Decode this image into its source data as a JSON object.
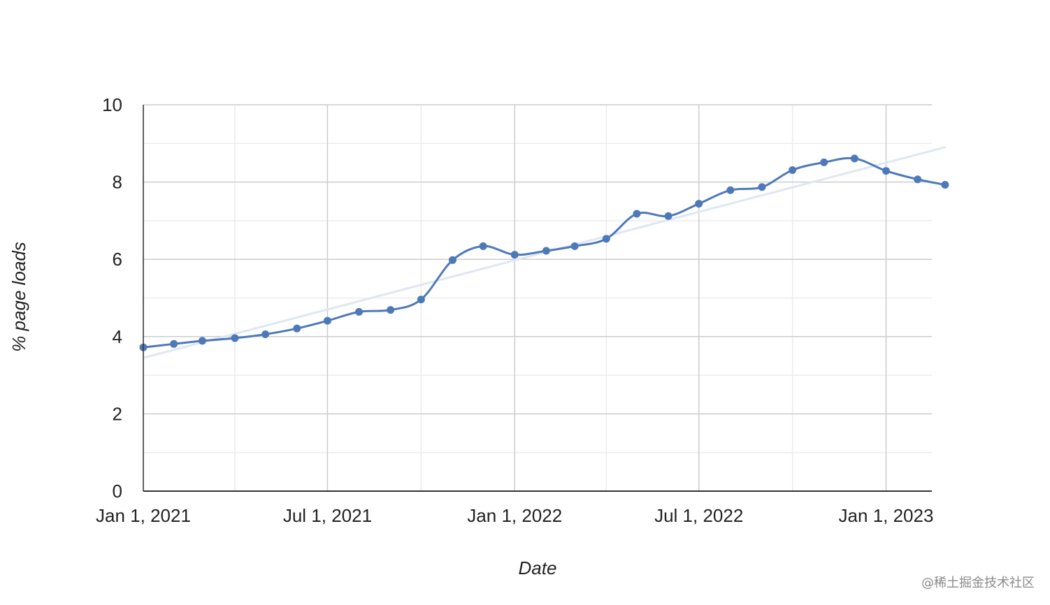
{
  "chart_data": {
    "type": "line",
    "title": "",
    "xlabel": "Date",
    "ylabel": "% page loads",
    "x_axis_type": "date",
    "xlim": [
      "2021-01-01",
      "2023-02-15"
    ],
    "ylim": [
      0,
      10
    ],
    "x_ticks": [
      {
        "date": "2021-01-01",
        "label": "Jan 1, 2021"
      },
      {
        "date": "2021-07-01",
        "label": "Jul 1, 2021"
      },
      {
        "date": "2022-01-01",
        "label": "Jan 1, 2022"
      },
      {
        "date": "2022-07-01",
        "label": "Jul 1, 2022"
      },
      {
        "date": "2023-01-01",
        "label": "Jan 1, 2023"
      }
    ],
    "x_minor_ticks": [
      "2021-04-01",
      "2021-10-01",
      "2022-04-01",
      "2022-10-01"
    ],
    "y_ticks": [
      {
        "value": 0,
        "label": "0"
      },
      {
        "value": 2,
        "label": "2"
      },
      {
        "value": 4,
        "label": "4"
      },
      {
        "value": 6,
        "label": "6"
      },
      {
        "value": 8,
        "label": "8"
      },
      {
        "value": 10,
        "label": "10"
      }
    ],
    "y_minor_ticks": [
      1,
      3,
      5,
      7,
      9
    ],
    "grid": true,
    "legend": "none",
    "series": [
      {
        "color": "#4e79b9",
        "smooth": true,
        "markers": true,
        "points": [
          {
            "x": "2021-01-01",
            "y": 3.72
          },
          {
            "x": "2021-01-31",
            "y": 3.81
          },
          {
            "x": "2021-02-28",
            "y": 3.89
          },
          {
            "x": "2021-04-01",
            "y": 3.96
          },
          {
            "x": "2021-05-01",
            "y": 4.06
          },
          {
            "x": "2021-06-01",
            "y": 4.21
          },
          {
            "x": "2021-07-01",
            "y": 4.41
          },
          {
            "x": "2021-08-01",
            "y": 4.64
          },
          {
            "x": "2021-09-01",
            "y": 4.69
          },
          {
            "x": "2021-10-01",
            "y": 4.96
          },
          {
            "x": "2021-11-01",
            "y": 5.98
          },
          {
            "x": "2021-12-01",
            "y": 6.34
          },
          {
            "x": "2022-01-01",
            "y": 6.12
          },
          {
            "x": "2022-02-01",
            "y": 6.22
          },
          {
            "x": "2022-03-01",
            "y": 6.34
          },
          {
            "x": "2022-04-01",
            "y": 6.53
          },
          {
            "x": "2022-05-01",
            "y": 7.18
          },
          {
            "x": "2022-06-01",
            "y": 7.12
          },
          {
            "x": "2022-07-01",
            "y": 7.44
          },
          {
            "x": "2022-08-01",
            "y": 7.79
          },
          {
            "x": "2022-09-01",
            "y": 7.87
          },
          {
            "x": "2022-10-01",
            "y": 8.31
          },
          {
            "x": "2022-11-01",
            "y": 8.51
          },
          {
            "x": "2022-12-01",
            "y": 8.61
          },
          {
            "x": "2023-01-01",
            "y": 8.29
          },
          {
            "x": "2023-02-01",
            "y": 8.07
          },
          {
            "x": "2023-02-28",
            "y": 7.93
          }
        ]
      }
    ],
    "trendline": {
      "type": "linear",
      "color": "#dfe7f3",
      "start": {
        "x": "2021-01-01",
        "y": 3.45
      },
      "end": {
        "x": "2023-02-28",
        "y": 8.9
      }
    }
  },
  "watermark": "@稀土掘金技术社区"
}
